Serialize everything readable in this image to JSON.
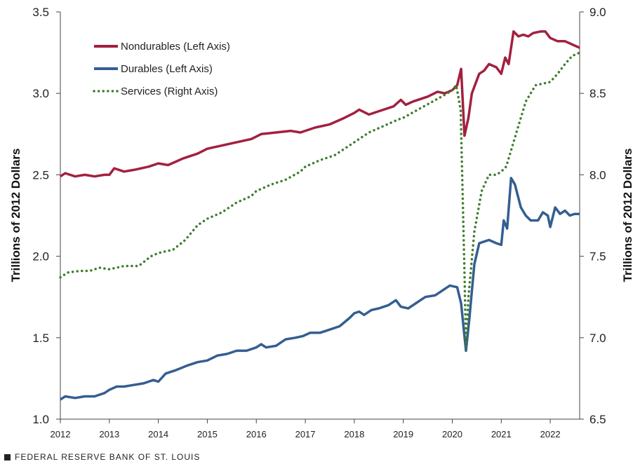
{
  "colors": {
    "nondurables": "#A3203F",
    "durables": "#345E91",
    "services": "#3F7E2E",
    "axis": "#444444"
  },
  "footer": {
    "source": "FEDERAL RESERVE BANK OF ST. LOUIS",
    "icon": "square-icon"
  },
  "chart_data": {
    "type": "line",
    "title": "",
    "ylabel": "Trillions of 2012 Dollars",
    "ylabel_right": "Trillions of 2012 Dollars",
    "xlim": [
      2012,
      2022.6
    ],
    "ylim": [
      1.0,
      3.5
    ],
    "ylim_right": [
      6.5,
      9.0
    ],
    "x_ticks": [
      "2012",
      "2013",
      "2014",
      "2015",
      "2016",
      "2017",
      "2018",
      "2019",
      "2020",
      "2021",
      "2022"
    ],
    "y_ticks_left": [
      "1.0",
      "1.5",
      "2.0",
      "2.5",
      "3.0",
      "3.5"
    ],
    "y_ticks_right": [
      "6.5",
      "7.0",
      "7.5",
      "8.0",
      "8.5",
      "9.0"
    ],
    "legend": {
      "position": "top-left"
    },
    "series": [
      {
        "name": "Nondurables (Left Axis)",
        "axis": "left",
        "style": "solid",
        "points": [
          [
            2012.0,
            2.49
          ],
          [
            2012.1,
            2.51
          ],
          [
            2012.3,
            2.49
          ],
          [
            2012.5,
            2.5
          ],
          [
            2012.7,
            2.49
          ],
          [
            2012.9,
            2.5
          ],
          [
            2013.0,
            2.5
          ],
          [
            2013.1,
            2.54
          ],
          [
            2013.3,
            2.52
          ],
          [
            2013.5,
            2.53
          ],
          [
            2013.8,
            2.55
          ],
          [
            2014.0,
            2.57
          ],
          [
            2014.2,
            2.56
          ],
          [
            2014.5,
            2.6
          ],
          [
            2014.8,
            2.63
          ],
          [
            2015.0,
            2.66
          ],
          [
            2015.3,
            2.68
          ],
          [
            2015.6,
            2.7
          ],
          [
            2015.9,
            2.72
          ],
          [
            2016.1,
            2.75
          ],
          [
            2016.4,
            2.76
          ],
          [
            2016.7,
            2.77
          ],
          [
            2016.9,
            2.76
          ],
          [
            2017.2,
            2.79
          ],
          [
            2017.5,
            2.81
          ],
          [
            2017.8,
            2.85
          ],
          [
            2018.0,
            2.88
          ],
          [
            2018.1,
            2.9
          ],
          [
            2018.3,
            2.87
          ],
          [
            2018.6,
            2.9
          ],
          [
            2018.8,
            2.92
          ],
          [
            2018.95,
            2.96
          ],
          [
            2019.05,
            2.93
          ],
          [
            2019.2,
            2.95
          ],
          [
            2019.5,
            2.98
          ],
          [
            2019.7,
            3.01
          ],
          [
            2019.85,
            3.0
          ],
          [
            2020.0,
            3.02
          ],
          [
            2020.1,
            3.05
          ],
          [
            2020.18,
            3.15
          ],
          [
            2020.25,
            2.74
          ],
          [
            2020.33,
            2.85
          ],
          [
            2020.4,
            3.0
          ],
          [
            2020.55,
            3.12
          ],
          [
            2020.65,
            3.14
          ],
          [
            2020.75,
            3.18
          ],
          [
            2020.9,
            3.16
          ],
          [
            2021.0,
            3.12
          ],
          [
            2021.08,
            3.22
          ],
          [
            2021.15,
            3.18
          ],
          [
            2021.25,
            3.38
          ],
          [
            2021.35,
            3.35
          ],
          [
            2021.45,
            3.36
          ],
          [
            2021.55,
            3.35
          ],
          [
            2021.65,
            3.37
          ],
          [
            2021.8,
            3.38
          ],
          [
            2021.9,
            3.38
          ],
          [
            2022.0,
            3.34
          ],
          [
            2022.15,
            3.32
          ],
          [
            2022.3,
            3.32
          ],
          [
            2022.45,
            3.3
          ],
          [
            2022.6,
            3.28
          ]
        ]
      },
      {
        "name": "Durables (Left Axis)",
        "axis": "left",
        "style": "solid",
        "points": [
          [
            2012.0,
            1.12
          ],
          [
            2012.1,
            1.14
          ],
          [
            2012.3,
            1.13
          ],
          [
            2012.5,
            1.14
          ],
          [
            2012.7,
            1.14
          ],
          [
            2012.9,
            1.16
          ],
          [
            2013.0,
            1.18
          ],
          [
            2013.15,
            1.2
          ],
          [
            2013.3,
            1.2
          ],
          [
            2013.5,
            1.21
          ],
          [
            2013.7,
            1.22
          ],
          [
            2013.9,
            1.24
          ],
          [
            2014.0,
            1.23
          ],
          [
            2014.15,
            1.28
          ],
          [
            2014.35,
            1.3
          ],
          [
            2014.6,
            1.33
          ],
          [
            2014.8,
            1.35
          ],
          [
            2015.0,
            1.36
          ],
          [
            2015.2,
            1.39
          ],
          [
            2015.4,
            1.4
          ],
          [
            2015.6,
            1.42
          ],
          [
            2015.8,
            1.42
          ],
          [
            2016.0,
            1.44
          ],
          [
            2016.1,
            1.46
          ],
          [
            2016.2,
            1.44
          ],
          [
            2016.4,
            1.45
          ],
          [
            2016.6,
            1.49
          ],
          [
            2016.8,
            1.5
          ],
          [
            2016.95,
            1.51
          ],
          [
            2017.1,
            1.53
          ],
          [
            2017.3,
            1.53
          ],
          [
            2017.5,
            1.55
          ],
          [
            2017.7,
            1.57
          ],
          [
            2017.9,
            1.62
          ],
          [
            2018.0,
            1.65
          ],
          [
            2018.1,
            1.66
          ],
          [
            2018.2,
            1.64
          ],
          [
            2018.35,
            1.67
          ],
          [
            2018.5,
            1.68
          ],
          [
            2018.7,
            1.7
          ],
          [
            2018.85,
            1.73
          ],
          [
            2018.95,
            1.69
          ],
          [
            2019.1,
            1.68
          ],
          [
            2019.25,
            1.71
          ],
          [
            2019.45,
            1.75
          ],
          [
            2019.65,
            1.76
          ],
          [
            2019.85,
            1.8
          ],
          [
            2019.95,
            1.82
          ],
          [
            2020.1,
            1.81
          ],
          [
            2020.18,
            1.71
          ],
          [
            2020.28,
            1.42
          ],
          [
            2020.35,
            1.62
          ],
          [
            2020.45,
            1.95
          ],
          [
            2020.55,
            2.08
          ],
          [
            2020.65,
            2.09
          ],
          [
            2020.75,
            2.1
          ],
          [
            2020.9,
            2.08
          ],
          [
            2021.0,
            2.07
          ],
          [
            2021.05,
            2.22
          ],
          [
            2021.12,
            2.17
          ],
          [
            2021.2,
            2.48
          ],
          [
            2021.28,
            2.44
          ],
          [
            2021.4,
            2.3
          ],
          [
            2021.5,
            2.25
          ],
          [
            2021.6,
            2.22
          ],
          [
            2021.75,
            2.22
          ],
          [
            2021.85,
            2.27
          ],
          [
            2021.95,
            2.25
          ],
          [
            2022.0,
            2.18
          ],
          [
            2022.1,
            2.3
          ],
          [
            2022.2,
            2.26
          ],
          [
            2022.3,
            2.28
          ],
          [
            2022.4,
            2.25
          ],
          [
            2022.5,
            2.26
          ],
          [
            2022.6,
            2.26
          ]
        ]
      },
      {
        "name": "Services (Right Axis)",
        "axis": "right",
        "style": "dotted",
        "points": [
          [
            2012.0,
            7.37
          ],
          [
            2012.15,
            7.4
          ],
          [
            2012.4,
            7.41
          ],
          [
            2012.6,
            7.41
          ],
          [
            2012.8,
            7.43
          ],
          [
            2013.0,
            7.42
          ],
          [
            2013.3,
            7.44
          ],
          [
            2013.6,
            7.44
          ],
          [
            2013.85,
            7.5
          ],
          [
            2014.0,
            7.52
          ],
          [
            2014.3,
            7.54
          ],
          [
            2014.55,
            7.6
          ],
          [
            2014.8,
            7.69
          ],
          [
            2015.0,
            7.73
          ],
          [
            2015.3,
            7.77
          ],
          [
            2015.6,
            7.83
          ],
          [
            2015.9,
            7.87
          ],
          [
            2016.0,
            7.9
          ],
          [
            2016.3,
            7.94
          ],
          [
            2016.6,
            7.97
          ],
          [
            2016.9,
            8.02
          ],
          [
            2017.0,
            8.05
          ],
          [
            2017.3,
            8.09
          ],
          [
            2017.6,
            8.12
          ],
          [
            2017.85,
            8.17
          ],
          [
            2018.0,
            8.2
          ],
          [
            2018.3,
            8.26
          ],
          [
            2018.6,
            8.3
          ],
          [
            2018.9,
            8.34
          ],
          [
            2019.0,
            8.35
          ],
          [
            2019.3,
            8.4
          ],
          [
            2019.6,
            8.45
          ],
          [
            2019.9,
            8.5
          ],
          [
            2020.0,
            8.52
          ],
          [
            2020.08,
            8.55
          ],
          [
            2020.17,
            8.4
          ],
          [
            2020.25,
            7.4
          ],
          [
            2020.28,
            6.93
          ],
          [
            2020.33,
            7.25
          ],
          [
            2020.45,
            7.65
          ],
          [
            2020.6,
            7.9
          ],
          [
            2020.75,
            8.0
          ],
          [
            2020.9,
            8.0
          ],
          [
            2021.0,
            8.02
          ],
          [
            2021.1,
            8.05
          ],
          [
            2021.2,
            8.15
          ],
          [
            2021.35,
            8.3
          ],
          [
            2021.5,
            8.45
          ],
          [
            2021.7,
            8.55
          ],
          [
            2021.85,
            8.56
          ],
          [
            2022.0,
            8.57
          ],
          [
            2022.15,
            8.62
          ],
          [
            2022.3,
            8.68
          ],
          [
            2022.45,
            8.73
          ],
          [
            2022.6,
            8.75
          ]
        ]
      }
    ]
  }
}
